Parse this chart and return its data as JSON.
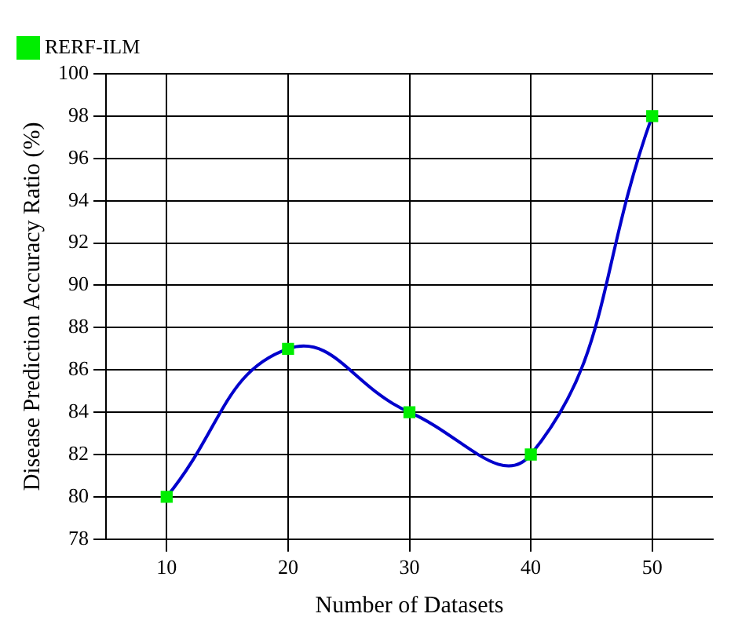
{
  "chart_data": {
    "type": "line",
    "xlabel": "Number of Datasets",
    "ylabel": "Disease Prediction Accuracy Ratio (%)",
    "x": [
      10,
      20,
      30,
      40,
      50
    ],
    "series": [
      {
        "name": "RERF-ILM",
        "color": "#0000cc",
        "colors": [
          "#00ee00",
          "#00ee00",
          "#00ee00",
          "#00ee00",
          "#00ee00"
        ],
        "values": [
          80,
          87,
          84,
          82,
          98
        ]
      }
    ],
    "marker": "square",
    "xlim": [
      5,
      55
    ],
    "xticks": [
      10,
      20,
      30,
      40,
      50
    ],
    "ylim": [
      78,
      100
    ],
    "yticks": [
      78,
      80,
      82,
      84,
      86,
      88,
      90,
      92,
      94,
      96,
      98,
      100
    ],
    "grid": true,
    "legend": "top left"
  }
}
